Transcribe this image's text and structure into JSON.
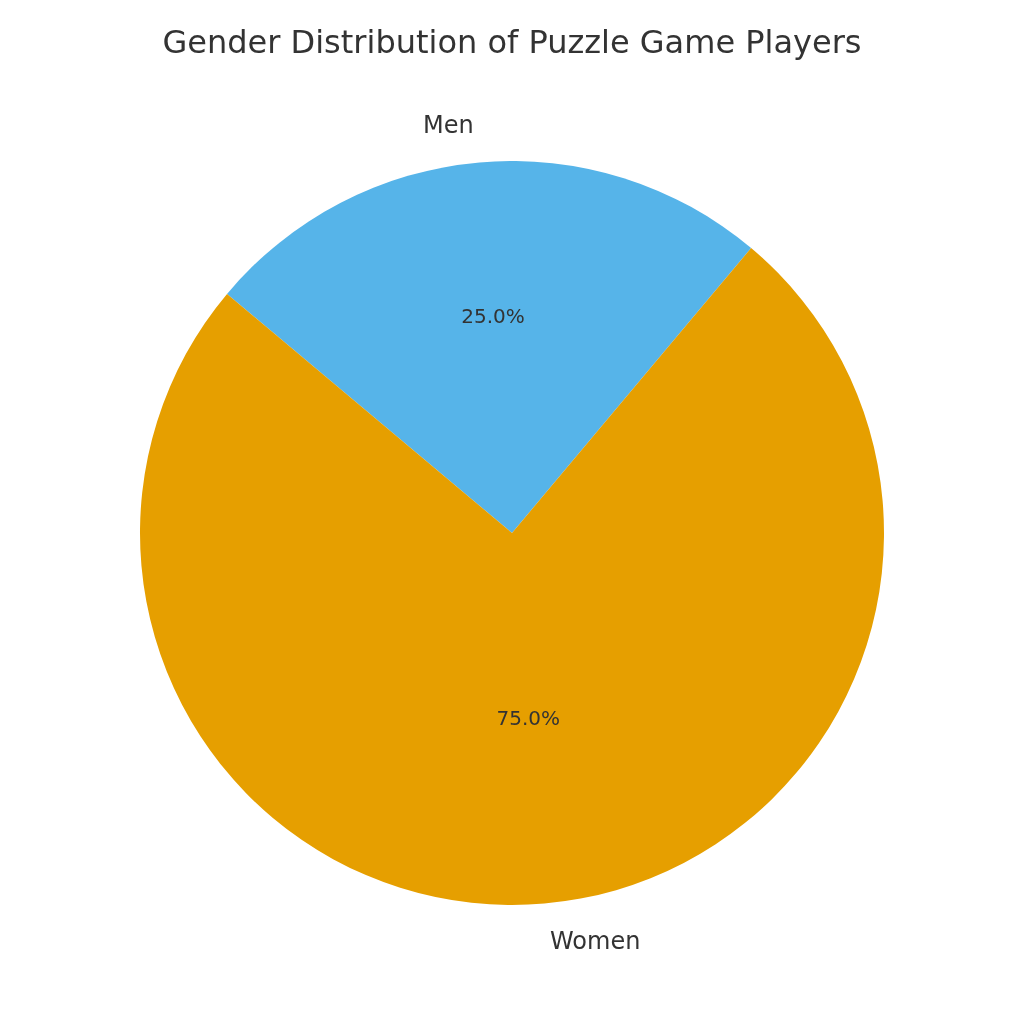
{
  "chart_data": {
    "type": "pie",
    "title": "Gender Distribution of Puzzle Game Players",
    "categories": [
      "Men",
      "Women"
    ],
    "values": [
      25,
      75
    ],
    "colors": [
      "#56b4e9",
      "#e69f00"
    ],
    "value_labels": [
      "25.0%",
      "75.0%"
    ]
  }
}
